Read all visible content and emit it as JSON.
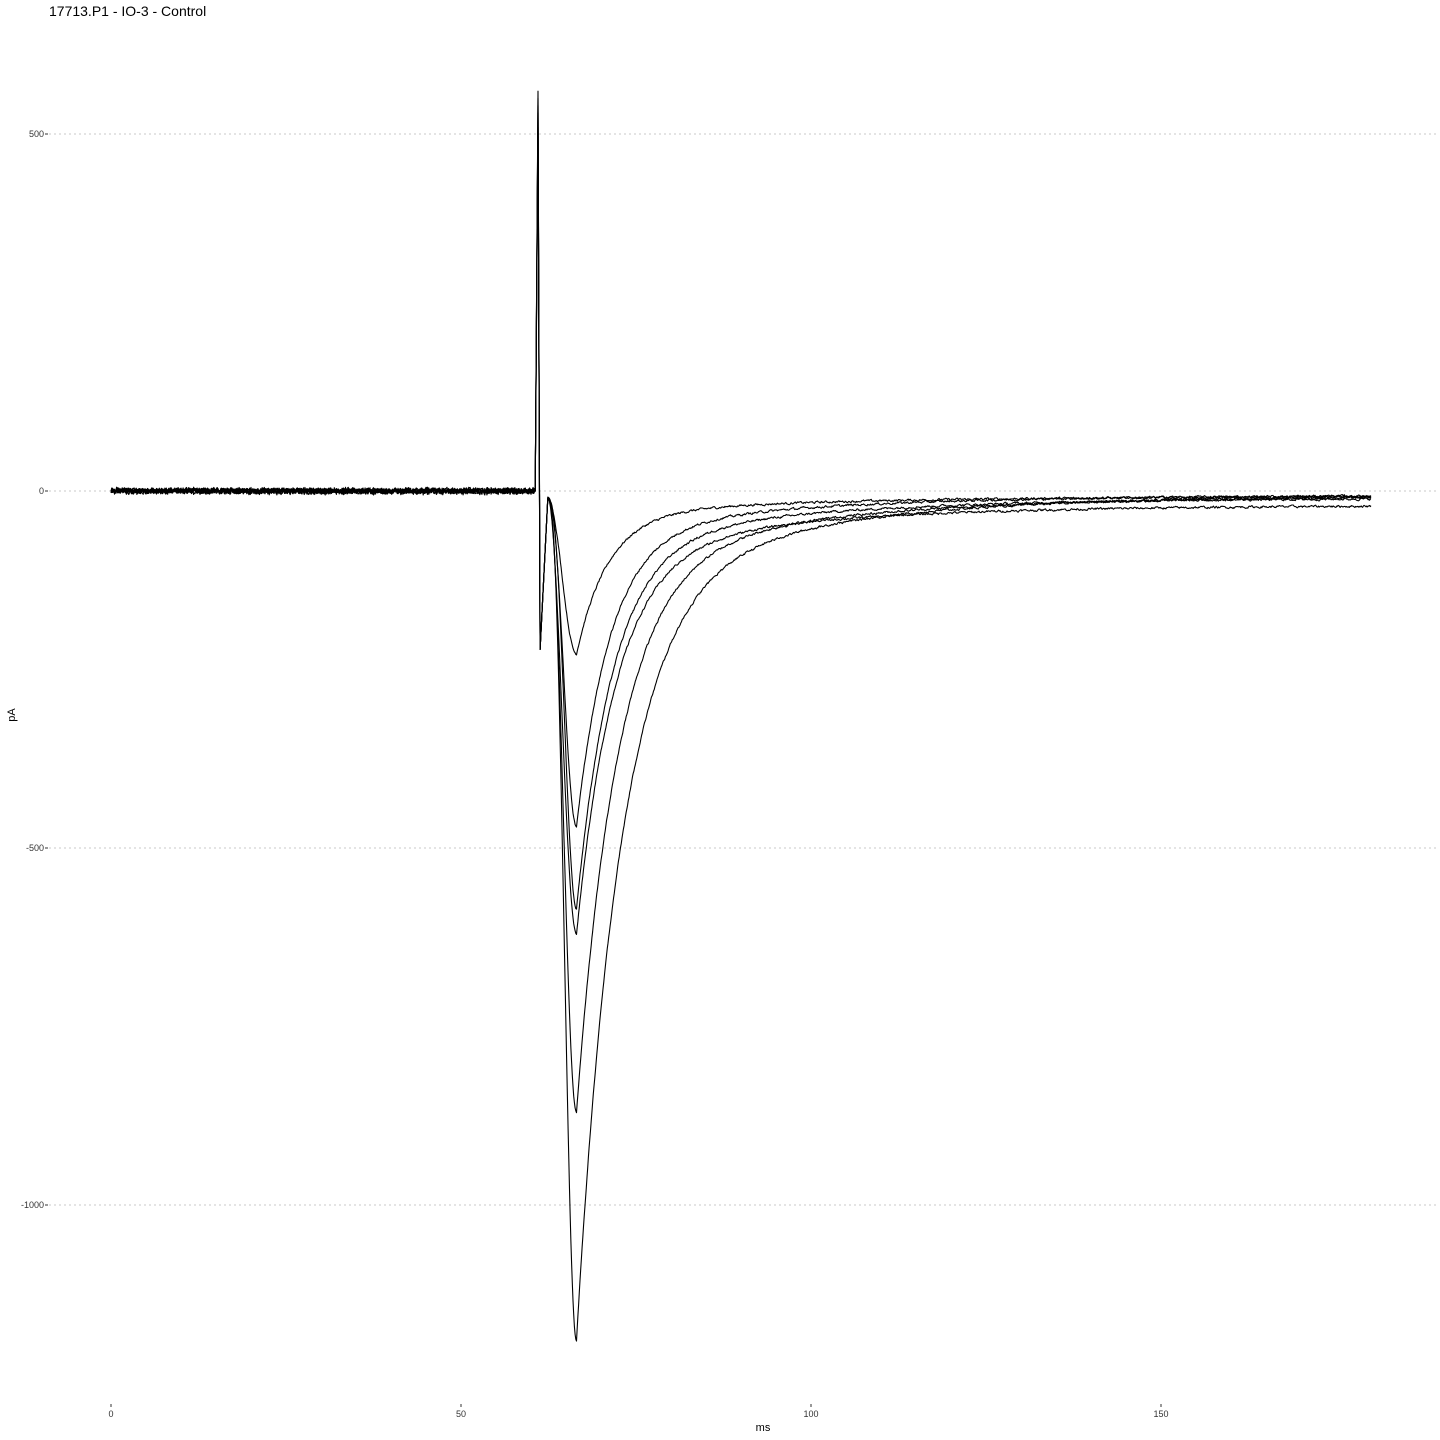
{
  "chart_data": {
    "type": "line",
    "title": "17713.P1 - IO-3 - Control",
    "xlabel": "ms",
    "ylabel": "pA",
    "xlim": [
      -9,
      189
    ],
    "ylim": [
      -1260,
      560
    ],
    "x_ticks": [
      0,
      50,
      100,
      150
    ],
    "x_tick_labels": [
      "0",
      "50",
      "100",
      "150"
    ],
    "y_ticks": [
      -1000,
      -500,
      0,
      500
    ],
    "y_tick_labels": [
      "-1000",
      "-500",
      "0",
      "500"
    ],
    "grid": "horizontal dotted major lines",
    "line_color": "#000000",
    "stimulus_artifact": {
      "time": 61,
      "peak_pA": 560,
      "trough_pA": -222
    },
    "baseline_pA": 0,
    "series": [
      {
        "min_pA": -228,
        "time_of_min": 66.5,
        "end_pA": -8
      },
      {
        "min_pA": -470,
        "time_of_min": 66.5,
        "end_pA": -6
      },
      {
        "min_pA": -585,
        "time_of_min": 66.5,
        "end_pA": -10
      },
      {
        "min_pA": -620,
        "time_of_min": 66.5,
        "end_pA": -20
      },
      {
        "min_pA": -870,
        "time_of_min": 66.5,
        "end_pA": -8
      },
      {
        "min_pA": -1190,
        "time_of_min": 66.5,
        "end_pA": -5
      }
    ]
  }
}
